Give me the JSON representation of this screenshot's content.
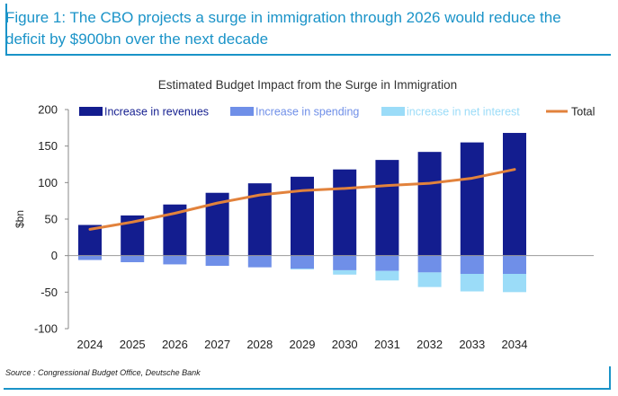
{
  "figure_title": "Figure 1: The CBO projects a surge in immigration through 2026 would reduce the deficit by $900bn over the next decade",
  "source": "Source : Congressional Budget Office, Deutsche Bank",
  "colors": {
    "accent": "#1a93c8",
    "revenues": "#131d8f",
    "spending": "#6f8fe8",
    "interest": "#9bdcf8",
    "total": "#e2823c"
  },
  "chart_data": {
    "type": "bar",
    "title": "Estimated Budget Impact from the Surge in Immigration",
    "ylabel": "$bn",
    "xlabel": "",
    "ylim": [
      -100,
      200
    ],
    "yticks": [
      200,
      150,
      100,
      50,
      0,
      -50,
      -100
    ],
    "grid": false,
    "legend_position": "top",
    "stacked": true,
    "categories": [
      "2024",
      "2025",
      "2026",
      "2027",
      "2028",
      "2029",
      "2030",
      "2031",
      "2032",
      "2033",
      "2034"
    ],
    "series": [
      {
        "name": "Increase in revenues",
        "kind": "bar",
        "color": "#131d8f",
        "values": [
          42,
          55,
          70,
          86,
          99,
          108,
          118,
          131,
          142,
          155,
          168
        ]
      },
      {
        "name": "Increase in spending",
        "kind": "bar",
        "color": "#6f8fe8",
        "values": [
          -6,
          -9,
          -12,
          -14,
          -16,
          -18,
          -20,
          -21,
          -23,
          -25,
          -25
        ]
      },
      {
        "name": "increase in net interest",
        "kind": "bar",
        "color": "#9bdcf8",
        "values": [
          0,
          0,
          0,
          0,
          0,
          -1,
          -6,
          -13,
          -20,
          -24,
          -25
        ]
      },
      {
        "name": "Total",
        "kind": "line",
        "color": "#e2823c",
        "values": [
          36,
          46,
          58,
          72,
          83,
          89,
          92,
          96,
          99,
          106,
          118
        ]
      }
    ]
  }
}
